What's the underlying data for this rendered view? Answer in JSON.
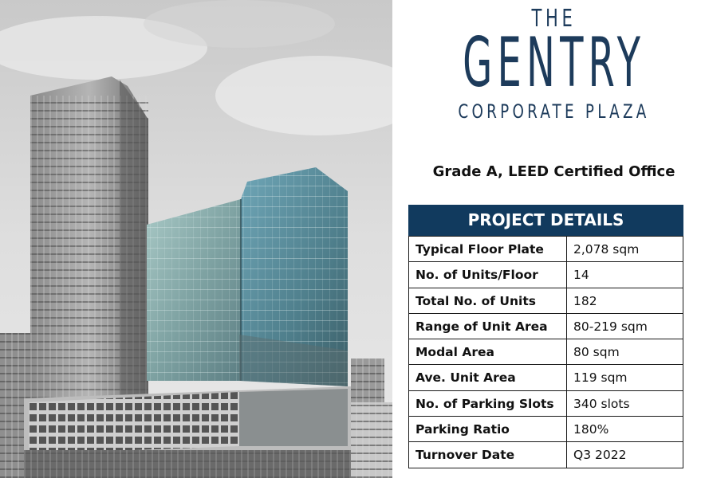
{
  "logo": {
    "line1": "THE",
    "line2": "GENTRY",
    "line3": "CORPORATE PLAZA"
  },
  "tagline": "Grade A, LEED Certified Office",
  "details": {
    "header": "PROJECT DETAILS",
    "rows": [
      {
        "label": "Typical Floor Plate",
        "value": "2,078 sqm"
      },
      {
        "label": "No. of Units/Floor",
        "value": "14"
      },
      {
        "label": "Total No. of Units",
        "value": "182"
      },
      {
        "label": "Range of Unit Area",
        "value": "80-219 sqm"
      },
      {
        "label": "Modal Area",
        "value": "80 sqm"
      },
      {
        "label": "Ave. Unit Area",
        "value": "119 sqm"
      },
      {
        "label": "No. of Parking Slots",
        "value": "340 slots"
      },
      {
        "label": "Parking Ratio",
        "value": "180%"
      },
      {
        "label": "Turnover Date",
        "value": "Q3 2022"
      }
    ]
  },
  "colors": {
    "brand_navy": "#113a5e",
    "logo_blue": "#1d3b5b"
  }
}
